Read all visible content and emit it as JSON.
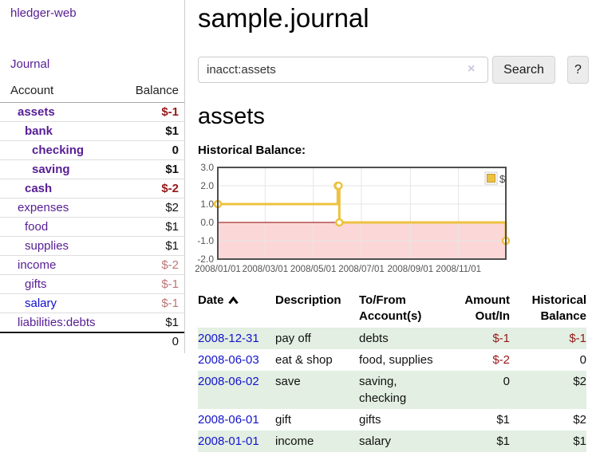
{
  "sidebar": {
    "brand": "hledger-web",
    "nav": {
      "journal": "Journal"
    },
    "table": {
      "headers": {
        "account": "Account",
        "balance": "Balance"
      },
      "rows": [
        {
          "account": "assets",
          "balance": "$-1",
          "depth": 1,
          "bold": true,
          "balance_style": "neg-strong"
        },
        {
          "account": "bank",
          "balance": "$1",
          "depth": 2,
          "bold": true,
          "balance_style": "pos"
        },
        {
          "account": "checking",
          "balance": "0",
          "depth": 3,
          "bold": true,
          "balance_style": "pos"
        },
        {
          "account": "saving",
          "balance": "$1",
          "depth": 3,
          "bold": true,
          "balance_style": "pos"
        },
        {
          "account": "cash",
          "balance": "$-2",
          "depth": 2,
          "bold": true,
          "balance_style": "neg-strong"
        },
        {
          "account": "expenses",
          "balance": "$2",
          "depth": 1,
          "bold": false,
          "balance_style": "pos"
        },
        {
          "account": "food",
          "balance": "$1",
          "depth": 2,
          "bold": false,
          "balance_style": "pos"
        },
        {
          "account": "supplies",
          "balance": "$1",
          "depth": 2,
          "bold": false,
          "balance_style": "pos"
        },
        {
          "account": "income",
          "balance": "$-2",
          "depth": 1,
          "bold": false,
          "balance_style": "neg-soft"
        },
        {
          "account": "gifts",
          "balance": "$-1",
          "depth": 2,
          "bold": false,
          "balance_style": "neg-soft"
        },
        {
          "account": "salary",
          "balance": "$-1",
          "depth": 2,
          "bold": false,
          "balance_style": "neg-soft",
          "link_style": "blue"
        },
        {
          "account": "liabilities:debts",
          "balance": "$1",
          "depth": 1,
          "bold": false,
          "balance_style": "pos"
        }
      ],
      "total": "0"
    }
  },
  "header": {
    "title": "sample.journal"
  },
  "search": {
    "value": "inacct:assets",
    "clear_icon": "×",
    "button": "Search",
    "help_button": "?"
  },
  "account_page": {
    "heading": "assets",
    "chart_label": "Historical Balance:"
  },
  "chart_data": {
    "type": "line",
    "step": true,
    "title": "Historical Balance",
    "legend": {
      "label": "$",
      "position": "top-right"
    },
    "series": [
      {
        "name": "$",
        "color": "#edc240",
        "points": [
          [
            "2008-01-01",
            1
          ],
          [
            "2008-06-01",
            2
          ],
          [
            "2008-06-02",
            2
          ],
          [
            "2008-06-03",
            0
          ],
          [
            "2008-12-31",
            -1
          ]
        ]
      }
    ],
    "xlim": [
      "2008-01-01",
      "2008-12-31"
    ],
    "ylim": [
      -2,
      3
    ],
    "x_tick_labels": [
      "2008/01/01",
      "2008/03/01",
      "2008/05/01",
      "2008/07/01",
      "2008/09/01",
      "2008/11/01"
    ],
    "y_ticks": [
      3,
      2,
      1,
      0,
      -1,
      -2
    ],
    "grid": true,
    "negative_region_color": "#fcd7d7",
    "zero_line_color": "#8b0000",
    "border_color": "#4f4f4f",
    "axis_text_color": "#545454",
    "grid_color": "#e6e6e6"
  },
  "register": {
    "columns": {
      "date": "Date",
      "description": "Description",
      "accounts": "To/From Account(s)",
      "amount": "Amount Out/In",
      "balance": "Historical Balance"
    },
    "rows": [
      {
        "date": "2008-12-31",
        "description": "pay off",
        "accounts": "debts",
        "amount": "$-1",
        "balance": "$-1",
        "amount_negative": true,
        "balance_negative": true
      },
      {
        "date": "2008-06-03",
        "description": "eat & shop",
        "accounts": "food, supplies",
        "amount": "$-2",
        "balance": "0",
        "amount_negative": true,
        "balance_negative": false
      },
      {
        "date": "2008-06-02",
        "description": "save",
        "accounts": "saving, checking",
        "amount": "0",
        "balance": "$2",
        "amount_negative": false,
        "balance_negative": false
      },
      {
        "date": "2008-06-01",
        "description": "gift",
        "accounts": "gifts",
        "amount": "$1",
        "balance": "$2",
        "amount_negative": false,
        "balance_negative": false
      },
      {
        "date": "2008-01-01",
        "description": "income",
        "accounts": "salary",
        "amount": "$1",
        "balance": "$1",
        "amount_negative": false,
        "balance_negative": false
      }
    ]
  }
}
